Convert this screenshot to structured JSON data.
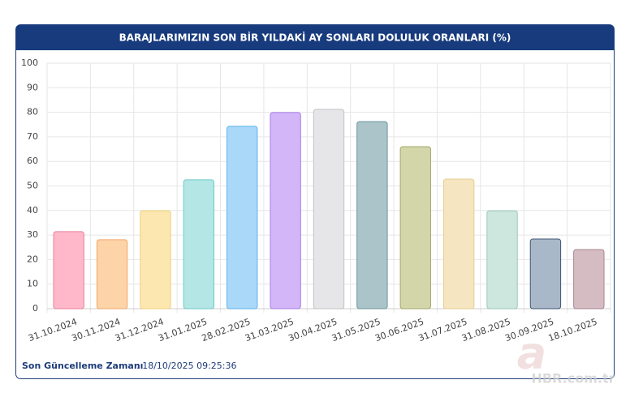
{
  "chart_data": {
    "type": "bar",
    "title": "BARAJLARIMIZIN SON BİR YILDAKİ AY SONLARI DOLULUK ORANLARI (%)",
    "categories": [
      "31.10.2024",
      "30.11.2024",
      "31.12.2024",
      "31.01.2025",
      "28.02.2025",
      "31.03.2025",
      "30.04.2025",
      "31.05.2025",
      "30.06.2025",
      "31.07.2025",
      "31.08.2025",
      "30.09.2025",
      "18.10.2025"
    ],
    "values": [
      31.4,
      28.1,
      39.9,
      52.5,
      74.3,
      79.9,
      81.2,
      76.2,
      66.0,
      52.8,
      39.9,
      28.4,
      24.1
    ],
    "colors": [
      "#ffb8c9",
      "#fdd3a8",
      "#fde7b0",
      "#b3e6e4",
      "#a9d8f8",
      "#d3b6f8",
      "#e6e6e8",
      "#aac4c9",
      "#d3d6a9",
      "#f6e5c1",
      "#cde6de",
      "#a9b8c9",
      "#d5bcc3"
    ],
    "border_colors": [
      "#e9809c",
      "#f2a868",
      "#f0cf7a",
      "#6fcac7",
      "#5db3ec",
      "#a77ee8",
      "#c2c2c6",
      "#6f959c",
      "#a3a86a",
      "#e6cd8f",
      "#98c9ba",
      "#3d5675",
      "#a88591"
    ],
    "ylim": [
      0,
      100
    ],
    "yticks": [
      0,
      10,
      20,
      30,
      40,
      50,
      60,
      70,
      80,
      90,
      100
    ],
    "grid": true
  },
  "footer": {
    "label": "Son Güncelleme Zamanı",
    "value": ": 18/10/2025 09:25:36"
  },
  "watermark": {
    "logo": "a",
    "text": "HBR.com.tr"
  }
}
